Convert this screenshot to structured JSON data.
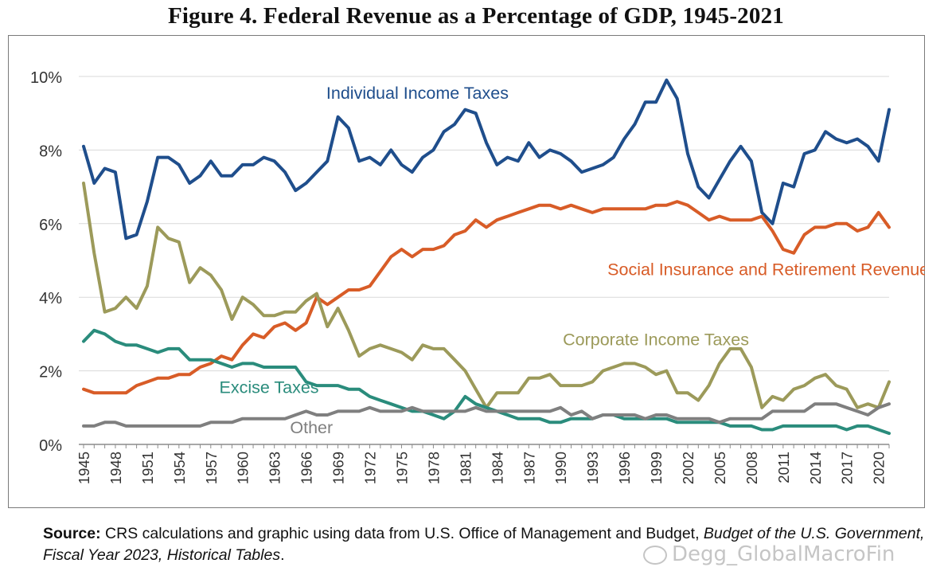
{
  "figure": {
    "title": "Figure 4. Federal Revenue as a Percentage of GDP, 1945-2021"
  },
  "source": {
    "label": "Source:",
    "text_a": " CRS calculations and graphic using data from U.S. Office of Management and Budget, ",
    "italic": "Budget of the U.S. Government, Fiscal Year 2023, Historical Tables",
    "text_b": "."
  },
  "watermark": {
    "text": "Degg_GlobalMacroFin"
  },
  "chart_data": {
    "type": "line",
    "title": "Figure 4. Federal Revenue as a Percentage of GDP, 1945-2021",
    "xlabel": "",
    "ylabel": "",
    "xlim": [
      1945,
      2021
    ],
    "ylim": [
      0,
      10
    ],
    "y_ticks": [
      {
        "value": 0,
        "label": "0%"
      },
      {
        "value": 2,
        "label": "2%"
      },
      {
        "value": 4,
        "label": "4%"
      },
      {
        "value": 6,
        "label": "6%"
      },
      {
        "value": 8,
        "label": "8%"
      },
      {
        "value": 10,
        "label": "10%"
      }
    ],
    "x_tick_labels": [
      "1945",
      "1948",
      "1951",
      "1954",
      "1957",
      "1960",
      "1963",
      "1966",
      "1969",
      "1972",
      "1975",
      "1978",
      "1981",
      "1984",
      "1987",
      "1990",
      "1993",
      "1996",
      "1999",
      "2002",
      "2005",
      "2008",
      "2011",
      "2014",
      "2017",
      "2020"
    ],
    "grid": "horizontal",
    "legend": "inline labels",
    "x_start": 1945,
    "series": [
      {
        "name": "Individual Income Taxes",
        "color": "#1f4e8c",
        "label_year": 1976.5,
        "label_value": 9.55,
        "values": [
          8.1,
          7.1,
          7.5,
          7.4,
          5.6,
          5.7,
          6.6,
          7.8,
          7.8,
          7.6,
          7.1,
          7.3,
          7.7,
          7.3,
          7.3,
          7.6,
          7.6,
          7.8,
          7.7,
          7.4,
          6.9,
          7.1,
          7.4,
          7.7,
          8.9,
          8.6,
          7.7,
          7.8,
          7.6,
          8.0,
          7.6,
          7.4,
          7.8,
          8.0,
          8.5,
          8.7,
          9.1,
          9.0,
          8.2,
          7.6,
          7.8,
          7.7,
          8.2,
          7.8,
          8.0,
          7.9,
          7.7,
          7.4,
          7.5,
          7.6,
          7.8,
          8.3,
          8.7,
          9.3,
          9.3,
          9.9,
          9.4,
          7.9,
          7.0,
          6.7,
          7.2,
          7.7,
          8.1,
          7.7,
          6.3,
          6.0,
          7.1,
          7.0,
          7.9,
          8.0,
          8.5,
          8.3,
          8.2,
          8.3,
          8.1,
          7.7,
          9.1
        ]
      },
      {
        "name": "Social Insurance and Retirement Revenues",
        "color": "#d85c27",
        "label_year": 2010,
        "label_value": 4.75,
        "values": [
          1.5,
          1.4,
          1.4,
          1.4,
          1.4,
          1.6,
          1.7,
          1.8,
          1.8,
          1.9,
          1.9,
          2.1,
          2.2,
          2.4,
          2.3,
          2.7,
          3.0,
          2.9,
          3.2,
          3.3,
          3.1,
          3.3,
          4.0,
          3.8,
          4.0,
          4.2,
          4.2,
          4.3,
          4.7,
          5.1,
          5.3,
          5.1,
          5.3,
          5.3,
          5.4,
          5.7,
          5.8,
          6.1,
          5.9,
          6.1,
          6.2,
          6.3,
          6.4,
          6.5,
          6.5,
          6.4,
          6.5,
          6.4,
          6.3,
          6.4,
          6.4,
          6.4,
          6.4,
          6.4,
          6.5,
          6.5,
          6.6,
          6.5,
          6.3,
          6.1,
          6.2,
          6.1,
          6.1,
          6.1,
          6.2,
          5.8,
          5.3,
          5.2,
          5.7,
          5.9,
          5.9,
          6.0,
          6.0,
          5.8,
          5.9,
          6.3,
          5.9
        ]
      },
      {
        "name": "Corporate Income Taxes",
        "color": "#9c9a5a",
        "label_year": 1999,
        "label_value": 2.85,
        "values": [
          7.1,
          5.2,
          3.6,
          3.7,
          4.0,
          3.7,
          4.3,
          5.9,
          5.6,
          5.5,
          4.4,
          4.8,
          4.6,
          4.2,
          3.4,
          4.0,
          3.8,
          3.5,
          3.5,
          3.6,
          3.6,
          3.9,
          4.1,
          3.2,
          3.7,
          3.1,
          2.4,
          2.6,
          2.7,
          2.6,
          2.5,
          2.3,
          2.7,
          2.6,
          2.6,
          2.3,
          2.0,
          1.5,
          1.0,
          1.4,
          1.4,
          1.4,
          1.8,
          1.8,
          1.9,
          1.6,
          1.6,
          1.6,
          1.7,
          2.0,
          2.1,
          2.2,
          2.2,
          2.1,
          1.9,
          2.0,
          1.4,
          1.4,
          1.2,
          1.6,
          2.2,
          2.6,
          2.6,
          2.1,
          1.0,
          1.3,
          1.2,
          1.5,
          1.6,
          1.8,
          1.9,
          1.6,
          1.5,
          1.0,
          1.1,
          1.0,
          1.7
        ]
      },
      {
        "name": "Excise Taxes",
        "color": "#2a8c7c",
        "label_year": 1962.5,
        "label_value": 1.55,
        "values": [
          2.8,
          3.1,
          3.0,
          2.8,
          2.7,
          2.7,
          2.6,
          2.5,
          2.6,
          2.6,
          2.3,
          2.3,
          2.3,
          2.2,
          2.1,
          2.2,
          2.2,
          2.1,
          2.1,
          2.1,
          2.1,
          1.7,
          1.6,
          1.6,
          1.6,
          1.5,
          1.5,
          1.3,
          1.2,
          1.1,
          1.0,
          0.9,
          0.9,
          0.8,
          0.7,
          0.9,
          1.3,
          1.1,
          1.0,
          0.9,
          0.8,
          0.7,
          0.7,
          0.7,
          0.6,
          0.6,
          0.7,
          0.7,
          0.7,
          0.8,
          0.8,
          0.7,
          0.7,
          0.7,
          0.7,
          0.7,
          0.6,
          0.6,
          0.6,
          0.6,
          0.6,
          0.5,
          0.5,
          0.5,
          0.4,
          0.4,
          0.5,
          0.5,
          0.5,
          0.5,
          0.5,
          0.5,
          0.4,
          0.5,
          0.5,
          0.4,
          0.3
        ]
      },
      {
        "name": "Other",
        "color": "#7f7f7f",
        "label_year": 1966.5,
        "label_value": 0.45,
        "values": [
          0.5,
          0.5,
          0.6,
          0.6,
          0.5,
          0.5,
          0.5,
          0.5,
          0.5,
          0.5,
          0.5,
          0.5,
          0.6,
          0.6,
          0.6,
          0.7,
          0.7,
          0.7,
          0.7,
          0.7,
          0.8,
          0.9,
          0.8,
          0.8,
          0.9,
          0.9,
          0.9,
          1.0,
          0.9,
          0.9,
          0.9,
          1.0,
          0.9,
          0.9,
          0.9,
          0.9,
          0.9,
          1.0,
          0.9,
          0.9,
          0.9,
          0.9,
          0.9,
          0.9,
          0.9,
          1.0,
          0.8,
          0.9,
          0.7,
          0.8,
          0.8,
          0.8,
          0.8,
          0.7,
          0.8,
          0.8,
          0.7,
          0.7,
          0.7,
          0.7,
          0.6,
          0.7,
          0.7,
          0.7,
          0.7,
          0.9,
          0.9,
          0.9,
          0.9,
          1.1,
          1.1,
          1.1,
          1.0,
          0.9,
          0.8,
          1.0,
          1.1
        ]
      }
    ]
  }
}
